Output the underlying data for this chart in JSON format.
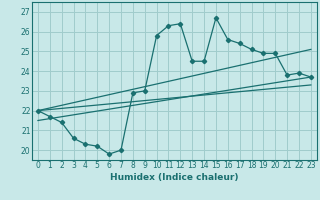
{
  "xlabel": "Humidex (Indice chaleur)",
  "bg_color": "#c8e8e8",
  "line_color": "#1a7070",
  "grid_color": "#a0cccc",
  "xlim": [
    -0.5,
    23.5
  ],
  "ylim": [
    19.5,
    27.5
  ],
  "xticks": [
    0,
    1,
    2,
    3,
    4,
    5,
    6,
    7,
    8,
    9,
    10,
    11,
    12,
    13,
    14,
    15,
    16,
    17,
    18,
    19,
    20,
    21,
    22,
    23
  ],
  "yticks": [
    20,
    21,
    22,
    23,
    24,
    25,
    26,
    27
  ],
  "main_line_x": [
    0,
    1,
    2,
    3,
    4,
    5,
    6,
    7,
    8,
    9,
    10,
    11,
    12,
    13,
    14,
    15,
    16,
    17,
    18,
    19,
    20,
    21,
    22,
    23
  ],
  "main_line_y": [
    22.0,
    21.7,
    21.4,
    20.6,
    20.3,
    20.2,
    19.8,
    20.0,
    22.9,
    23.0,
    25.8,
    26.3,
    26.4,
    24.5,
    24.5,
    26.7,
    25.6,
    25.4,
    25.1,
    24.9,
    24.9,
    23.8,
    23.9,
    23.7
  ],
  "line2_x": [
    0,
    23
  ],
  "line2_y": [
    22.0,
    25.1
  ],
  "line3_x": [
    0,
    23
  ],
  "line3_y": [
    21.5,
    23.7
  ],
  "line4_x": [
    0,
    23
  ],
  "line4_y": [
    22.0,
    23.3
  ]
}
